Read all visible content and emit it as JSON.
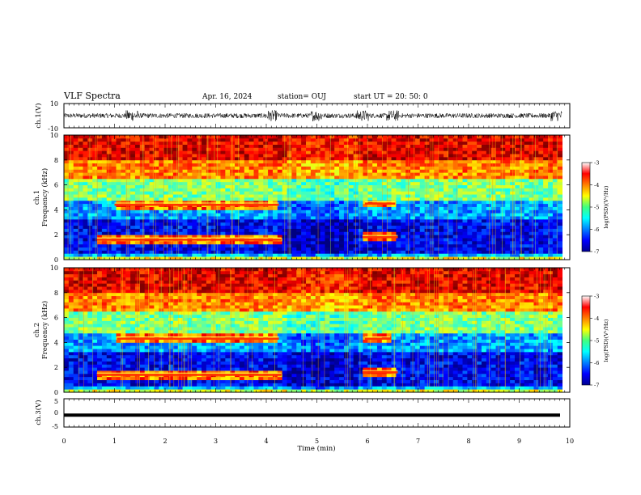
{
  "header": {
    "title": "VLF Spectra",
    "date": "Apr. 16, 2024",
    "station": "station= OUJ",
    "start": "start  UT  =   20: 50: 0"
  },
  "chart_data": [
    {
      "type": "line",
      "panel": "ch1-waveform",
      "ylabel": "ch.1(V)",
      "ylim": [
        -10,
        10
      ],
      "yticks": [
        "10",
        "-10"
      ],
      "xlim": [
        0,
        10
      ],
      "description_of_values": "dense noise waveform centred near 0 V",
      "amplitude_typical": 2,
      "bursts_min": [
        1.35,
        4.1,
        5.0,
        5.9,
        6.5,
        9.75
      ]
    },
    {
      "type": "heatmap",
      "panel": "ch1-spectrogram",
      "ylabel": "ch.1\nFrequency (kHz)",
      "ylabel_line1": "ch.1",
      "ylabel_line2": "Frequency (kHz)",
      "ylim": [
        0,
        10
      ],
      "yticks": [
        "0",
        "2",
        "4",
        "6",
        "8",
        "10"
      ],
      "xlim": [
        0,
        10
      ],
      "colorbar": {
        "label": "log(PSD)(V²/Hz)",
        "range": [
          -7,
          -3
        ],
        "ticks": [
          "-3",
          "-4",
          "-5",
          "-6",
          "-7"
        ]
      },
      "bands_khz": [
        {
          "freq": 4.4,
          "start_min": 1.0,
          "end_min": 4.25
        },
        {
          "freq": 1.6,
          "start_min": 0.65,
          "end_min": 4.3
        },
        {
          "freq": 4.5,
          "start_min": 5.95,
          "end_min": 6.55
        },
        {
          "freq": 1.8,
          "start_min": 5.9,
          "end_min": 6.6
        }
      ],
      "data_end_min": 9.85
    },
    {
      "type": "heatmap",
      "panel": "ch2-spectrogram",
      "ylabel": "ch.2\nFrequency (kHz)",
      "ylabel_line1": "ch.2",
      "ylabel_line2": "Frequency (kHz)",
      "ylim": [
        0,
        10
      ],
      "yticks": [
        "0",
        "2",
        "4",
        "6",
        "8",
        "10"
      ],
      "xlim": [
        0,
        10
      ],
      "colorbar": {
        "label": "log(PSD)(V²/Hz)",
        "range": [
          -7,
          -3
        ],
        "ticks": [
          "-3",
          "-4",
          "-5",
          "-6",
          "-7"
        ]
      },
      "bands_khz": [
        {
          "freq": 4.3,
          "start_min": 1.05,
          "end_min": 4.25
        },
        {
          "freq": 1.4,
          "start_min": 0.65,
          "end_min": 4.3
        },
        {
          "freq": 4.3,
          "start_min": 5.95,
          "end_min": 6.45
        },
        {
          "freq": 1.6,
          "start_min": 5.9,
          "end_min": 6.6
        }
      ],
      "data_end_min": 9.85
    },
    {
      "type": "line",
      "panel": "ch3-waveform",
      "ylabel": "ch.3(V)",
      "ylim": [
        -5,
        5
      ],
      "yticks": [
        "5",
        "0",
        "-5"
      ],
      "xlim": [
        0,
        10
      ],
      "xticks": [
        "0",
        "1",
        "2",
        "3",
        "4",
        "5",
        "6",
        "7",
        "8",
        "9",
        "10"
      ],
      "xlabel": "Time  (min)",
      "value_constant": -0.8
    }
  ]
}
